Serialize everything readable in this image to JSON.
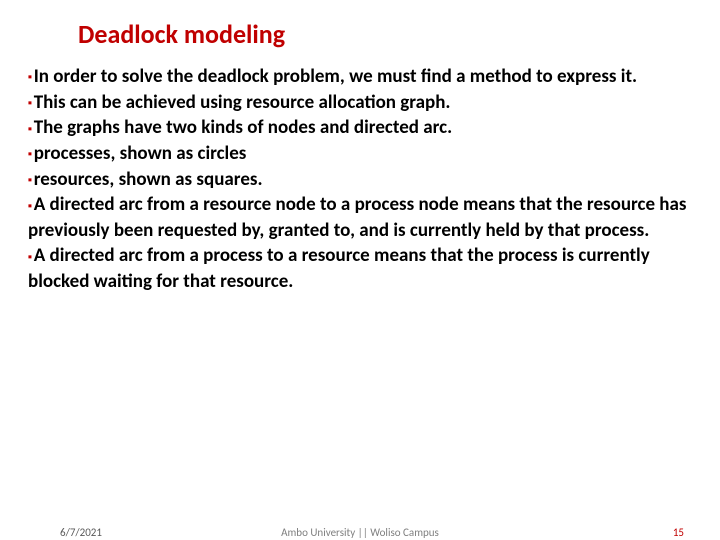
{
  "slide": {
    "title": "Deadlock modeling",
    "title_color": "#c00000",
    "title_fontsize": 26,
    "bullet_color": "#c00000",
    "bullet_glyph": "▪",
    "body_color": "#000000",
    "body_fontsize": 19,
    "points": [
      "In order to solve the deadlock problem, we must find a method to express it.",
      "This can be achieved using resource allocation graph.",
      "The graphs have two kinds of nodes and directed arc.",
      "processes, shown as circles",
      "resources, shown as squares.",
      "A directed arc from a resource node to a process node means that the resource has previously been requested by, granted to, and is currently held by that process.",
      "A directed arc from a process to a resource means that the process is currently blocked waiting for that resource."
    ]
  },
  "footer": {
    "date": "6/7/2021",
    "source": "Ambo University || Woliso Campus",
    "page": "15",
    "date_color": "#595959",
    "source_color": "#7f7f7f",
    "page_color": "#c00000"
  },
  "background_color": "#ffffff"
}
